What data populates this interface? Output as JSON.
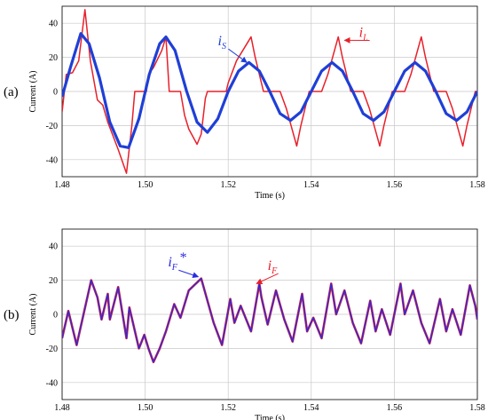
{
  "colors": {
    "load": "#e8202a",
    "source": "#1f3fd6",
    "filter": "#e8202a",
    "filter_ref": "#2a2ae0",
    "grid": "#c8c8c8"
  },
  "chart_data": [
    {
      "type": "line",
      "panel_label": "(a)",
      "xlabel": "Time (s)",
      "ylabel": "Current (A)",
      "xlim": [
        1.48,
        1.58
      ],
      "ylim": [
        -50,
        50
      ],
      "xticks": [
        "1.48",
        "1.50",
        "1.52",
        "1.54",
        "1.56",
        "1.58"
      ],
      "yticks": [
        "40",
        "20",
        "0",
        "-20",
        "-40"
      ],
      "grid": true,
      "series": [
        {
          "name": "iL",
          "color": "#e8202a",
          "points": [
            [
              1.48,
              -12
            ],
            [
              1.481,
              10
            ],
            [
              1.4825,
              11
            ],
            [
              1.484,
              18
            ],
            [
              1.4855,
              48
            ],
            [
              1.4868,
              18
            ],
            [
              1.4885,
              -5
            ],
            [
              1.4898,
              -8
            ],
            [
              1.491,
              -18
            ],
            [
              1.4935,
              -34
            ],
            [
              1.4955,
              -48
            ],
            [
              1.4968,
              -20
            ],
            [
              1.4975,
              0
            ],
            [
              1.5003,
              0
            ],
            [
              1.5008,
              10
            ],
            [
              1.502,
              14
            ],
            [
              1.504,
              24
            ],
            [
              1.505,
              32
            ],
            [
              1.5058,
              0
            ],
            [
              1.5085,
              0
            ],
            [
              1.5095,
              -14
            ],
            [
              1.5105,
              -22
            ],
            [
              1.5125,
              -31
            ],
            [
              1.5135,
              -25
            ],
            [
              1.5145,
              -4
            ],
            [
              1.515,
              0
            ],
            [
              1.5195,
              0
            ],
            [
              1.52,
              5
            ],
            [
              1.522,
              18
            ],
            [
              1.5255,
              32
            ],
            [
              1.5265,
              20
            ],
            [
              1.5285,
              0
            ],
            [
              1.5325,
              0
            ],
            [
              1.534,
              -10
            ],
            [
              1.5365,
              -32
            ],
            [
              1.5375,
              -20
            ],
            [
              1.5395,
              0
            ],
            [
              1.5425,
              0
            ],
            [
              1.544,
              10
            ],
            [
              1.5465,
              32
            ],
            [
              1.5475,
              20
            ],
            [
              1.5495,
              0
            ],
            [
              1.5525,
              0
            ],
            [
              1.554,
              -10
            ],
            [
              1.5565,
              -32
            ],
            [
              1.5575,
              -20
            ],
            [
              1.5595,
              0
            ],
            [
              1.5625,
              0
            ],
            [
              1.564,
              10
            ],
            [
              1.5665,
              32
            ],
            [
              1.5675,
              20
            ],
            [
              1.5695,
              0
            ],
            [
              1.5725,
              0
            ],
            [
              1.574,
              -10
            ],
            [
              1.5765,
              -32
            ],
            [
              1.5775,
              -20
            ],
            [
              1.5795,
              0
            ],
            [
              1.58,
              0
            ]
          ]
        },
        {
          "name": "iS",
          "color": "#1f3fd6",
          "points": [
            [
              1.48,
              -3
            ],
            [
              1.482,
              14
            ],
            [
              1.4845,
              34
            ],
            [
              1.4865,
              28
            ],
            [
              1.489,
              8
            ],
            [
              1.4915,
              -18
            ],
            [
              1.494,
              -32
            ],
            [
              1.496,
              -33
            ],
            [
              1.4985,
              -16
            ],
            [
              1.501,
              10
            ],
            [
              1.5035,
              28
            ],
            [
              1.505,
              32
            ],
            [
              1.5072,
              24
            ],
            [
              1.51,
              0
            ],
            [
              1.5125,
              -18
            ],
            [
              1.515,
              -24
            ],
            [
              1.5175,
              -16
            ],
            [
              1.52,
              0
            ],
            [
              1.5225,
              12
            ],
            [
              1.525,
              17
            ],
            [
              1.5275,
              12
            ],
            [
              1.53,
              0
            ],
            [
              1.5325,
              -13
            ],
            [
              1.535,
              -17
            ],
            [
              1.5375,
              -12
            ],
            [
              1.54,
              0
            ],
            [
              1.5425,
              12
            ],
            [
              1.545,
              17
            ],
            [
              1.5475,
              12
            ],
            [
              1.55,
              0
            ],
            [
              1.5525,
              -13
            ],
            [
              1.555,
              -17
            ],
            [
              1.5575,
              -12
            ],
            [
              1.56,
              0
            ],
            [
              1.5625,
              12
            ],
            [
              1.565,
              17
            ],
            [
              1.5675,
              12
            ],
            [
              1.57,
              0
            ],
            [
              1.5725,
              -13
            ],
            [
              1.575,
              -17
            ],
            [
              1.5775,
              -12
            ],
            [
              1.58,
              0
            ]
          ]
        }
      ],
      "annotations": [
        {
          "main": "i",
          "sub": "S",
          "color": "#1f3fd6",
          "target": [
            1.5245,
            17
          ],
          "text_at": [
            1.5175,
            27
          ]
        },
        {
          "main": "i",
          "sub": "L",
          "color": "#e8202a",
          "target": [
            1.548,
            30
          ],
          "text_at": [
            1.5515,
            32
          ]
        }
      ]
    },
    {
      "type": "line",
      "panel_label": "(b)",
      "xlabel": "Time (s)",
      "ylabel": "Current (A)",
      "xlim": [
        1.48,
        1.58
      ],
      "ylim": [
        -50,
        50
      ],
      "xticks": [
        "1.48",
        "1.50",
        "1.52",
        "1.54",
        "1.56",
        "1.58"
      ],
      "yticks": [
        "40",
        "20",
        "0",
        "-20",
        "-40"
      ],
      "grid": true,
      "series": [
        {
          "name": "iF",
          "color": "#e8202a",
          "points": [
            [
              1.48,
              -14
            ],
            [
              1.4815,
              2
            ],
            [
              1.4835,
              -18
            ],
            [
              1.487,
              20
            ],
            [
              1.4885,
              10
            ],
            [
              1.4895,
              -3
            ],
            [
              1.491,
              12
            ],
            [
              1.4915,
              -3
            ],
            [
              1.4935,
              16
            ],
            [
              1.4955,
              -14
            ],
            [
              1.4962,
              4
            ],
            [
              1.4985,
              -20
            ],
            [
              1.4998,
              -12
            ],
            [
              1.5008,
              -20
            ],
            [
              1.502,
              -28
            ],
            [
              1.5035,
              -20
            ],
            [
              1.505,
              -10
            ],
            [
              1.507,
              6
            ],
            [
              1.5085,
              -2
            ],
            [
              1.5105,
              14
            ],
            [
              1.5135,
              21
            ],
            [
              1.5165,
              -5
            ],
            [
              1.5185,
              -18
            ],
            [
              1.5205,
              9
            ],
            [
              1.5215,
              -5
            ],
            [
              1.523,
              5
            ],
            [
              1.5255,
              -10
            ],
            [
              1.5275,
              18
            ],
            [
              1.528,
              10
            ],
            [
              1.5295,
              -6
            ],
            [
              1.5315,
              14
            ],
            [
              1.5335,
              -3
            ],
            [
              1.5355,
              -16
            ],
            [
              1.5378,
              12
            ],
            [
              1.539,
              -10
            ],
            [
              1.5405,
              -2
            ],
            [
              1.5425,
              -14
            ],
            [
              1.5448,
              18
            ],
            [
              1.546,
              0
            ],
            [
              1.548,
              14
            ],
            [
              1.55,
              -5
            ],
            [
              1.552,
              -17
            ],
            [
              1.5542,
              8
            ],
            [
              1.5555,
              -10
            ],
            [
              1.557,
              3
            ],
            [
              1.559,
              -12
            ],
            [
              1.5615,
              18
            ],
            [
              1.5625,
              0
            ],
            [
              1.5645,
              14
            ],
            [
              1.5665,
              -5
            ],
            [
              1.5685,
              -17
            ],
            [
              1.571,
              9
            ],
            [
              1.5725,
              -10
            ],
            [
              1.574,
              3
            ],
            [
              1.576,
              -12
            ],
            [
              1.5782,
              17
            ],
            [
              1.5795,
              5
            ],
            [
              1.58,
              -3
            ]
          ]
        },
        {
          "name": "iF*",
          "color": "#2a2ae0",
          "points": [
            [
              1.48,
              -14
            ],
            [
              1.4815,
              2
            ],
            [
              1.4835,
              -18
            ],
            [
              1.487,
              20
            ],
            [
              1.4885,
              10
            ],
            [
              1.4895,
              -3
            ],
            [
              1.491,
              12
            ],
            [
              1.4915,
              -3
            ],
            [
              1.4935,
              16
            ],
            [
              1.4955,
              -14
            ],
            [
              1.4962,
              4
            ],
            [
              1.4985,
              -20
            ],
            [
              1.4998,
              -12
            ],
            [
              1.5008,
              -20
            ],
            [
              1.502,
              -28
            ],
            [
              1.5035,
              -20
            ],
            [
              1.505,
              -10
            ],
            [
              1.507,
              6
            ],
            [
              1.5085,
              -2
            ],
            [
              1.5105,
              14
            ],
            [
              1.5135,
              21
            ],
            [
              1.5165,
              -5
            ],
            [
              1.5185,
              -18
            ],
            [
              1.5205,
              9
            ],
            [
              1.5215,
              -5
            ],
            [
              1.523,
              5
            ],
            [
              1.5255,
              -10
            ],
            [
              1.5275,
              18
            ],
            [
              1.528,
              10
            ],
            [
              1.5295,
              -6
            ],
            [
              1.5315,
              14
            ],
            [
              1.5335,
              -3
            ],
            [
              1.5355,
              -16
            ],
            [
              1.5378,
              12
            ],
            [
              1.539,
              -10
            ],
            [
              1.5405,
              -2
            ],
            [
              1.5425,
              -14
            ],
            [
              1.5448,
              18
            ],
            [
              1.546,
              0
            ],
            [
              1.548,
              14
            ],
            [
              1.55,
              -5
            ],
            [
              1.552,
              -17
            ],
            [
              1.5542,
              8
            ],
            [
              1.5555,
              -10
            ],
            [
              1.557,
              3
            ],
            [
              1.559,
              -12
            ],
            [
              1.5615,
              18
            ],
            [
              1.5625,
              0
            ],
            [
              1.5645,
              14
            ],
            [
              1.5665,
              -5
            ],
            [
              1.5685,
              -17
            ],
            [
              1.571,
              9
            ],
            [
              1.5725,
              -10
            ],
            [
              1.574,
              3
            ],
            [
              1.576,
              -12
            ],
            [
              1.5782,
              17
            ],
            [
              1.5795,
              5
            ],
            [
              1.58,
              -3
            ]
          ]
        }
      ],
      "annotations": [
        {
          "main": "i",
          "sub": "F",
          "suffix": "*",
          "color": "#2a2ae0",
          "target": [
            1.5128,
            22
          ],
          "text_at": [
            1.5055,
            28
          ]
        },
        {
          "main": "i",
          "sub": "F",
          "color": "#e8202a",
          "target": [
            1.5268,
            18
          ],
          "text_at": [
            1.5295,
            26
          ]
        }
      ]
    }
  ]
}
